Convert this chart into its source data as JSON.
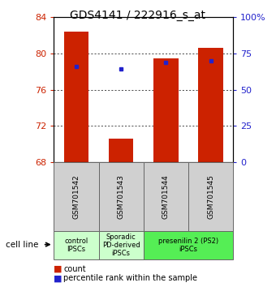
{
  "title": "GDS4141 / 222916_s_at",
  "samples": [
    "GSM701542",
    "GSM701543",
    "GSM701544",
    "GSM701545"
  ],
  "bar_values": [
    82.4,
    70.6,
    79.5,
    80.6
  ],
  "bar_bottom": 68,
  "percentile_values": [
    78.6,
    78.25,
    79.0,
    79.2
  ],
  "ylim_left": [
    68,
    84
  ],
  "ylim_right": [
    0,
    100
  ],
  "yticks_left": [
    68,
    72,
    76,
    80,
    84
  ],
  "yticks_right": [
    0,
    25,
    50,
    75,
    100
  ],
  "bar_color": "#cc2200",
  "dot_color": "#2222cc",
  "bar_width": 0.55,
  "group_defs": [
    {
      "span": [
        0,
        0
      ],
      "label": "control\nIPSCs",
      "color": "#ccffcc"
    },
    {
      "span": [
        1,
        1
      ],
      "label": "Sporadic\nPD-derived\niPSCs",
      "color": "#ccffcc"
    },
    {
      "span": [
        2,
        3
      ],
      "label": "presenilin 2 (PS2)\niPSCs",
      "color": "#55ee55"
    }
  ],
  "cell_line_label": "cell line",
  "legend_count": "count",
  "legend_pct": "percentile rank within the sample",
  "title_fontsize": 10,
  "tick_label_color_left": "#cc2200",
  "tick_label_color_right": "#2222cc",
  "sample_box_color": "#d0d0d0",
  "grid_color": "#000000"
}
